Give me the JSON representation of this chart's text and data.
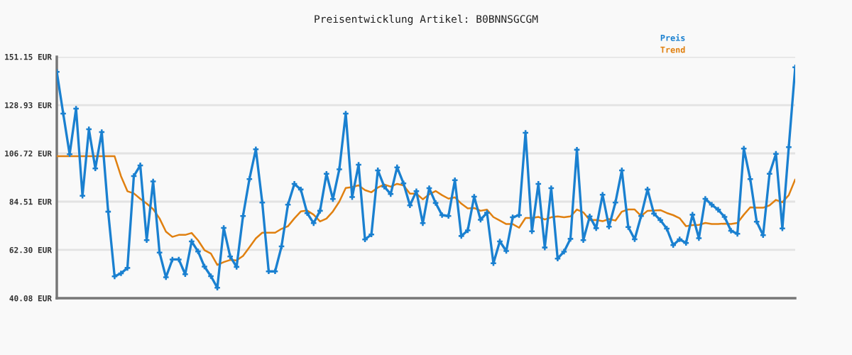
{
  "chart_data": {
    "type": "line",
    "title": "Preisentwicklung Artikel: B0BNNSGCGM",
    "categories": [
      null,
      null,
      null,
      null,
      null,
      null,
      null,
      null,
      null,
      null,
      null,
      null,
      null,
      null,
      null,
      null,
      null,
      null,
      null,
      null,
      null,
      null,
      null,
      null,
      null,
      null,
      null,
      null,
      null,
      null,
      null,
      null,
      null,
      null,
      null,
      null,
      null,
      null,
      null,
      null,
      null,
      null,
      null,
      null,
      null,
      null,
      null,
      null,
      null,
      null,
      null,
      null,
      null,
      null,
      null,
      null,
      null,
      null,
      null,
      null,
      null,
      null,
      null,
      null,
      null,
      null,
      null,
      null,
      null,
      null,
      null,
      null,
      null,
      null,
      null,
      null,
      null,
      null,
      null,
      null,
      null,
      null,
      null,
      null,
      null,
      null,
      null,
      null,
      null,
      null,
      null,
      null,
      null,
      null,
      null,
      null,
      null,
      null,
      null,
      null,
      null,
      null,
      null,
      null,
      null,
      null,
      null,
      null,
      null,
      null,
      null,
      null,
      null,
      null,
      null,
      null
    ],
    "series": [
      {
        "name": "Preis",
        "color": "#1a80d0",
        "marker": "cross",
        "values": [
          144.2,
          125.0,
          106.3,
          127.3,
          87.2,
          117.8,
          99.8,
          116.5,
          79.9,
          50.1,
          51.5,
          54.0,
          96.3,
          101.2,
          66.8,
          93.8,
          61.1,
          49.7,
          57.9,
          57.9,
          51.1,
          66.2,
          61.6,
          54.6,
          50.2,
          44.9,
          72.4,
          59.3,
          54.5,
          77.9,
          94.9,
          108.6,
          84.1,
          52.4,
          52.4,
          63.9,
          83.1,
          92.7,
          90.1,
          79.2,
          74.6,
          80.3,
          97.3,
          85.7,
          99.4,
          125.0,
          86.6,
          101.5,
          67.1,
          69.4,
          98.9,
          91.4,
          88.0,
          100.3,
          92.9,
          82.8,
          89.3,
          74.6,
          90.7,
          83.9,
          78.3,
          77.9,
          94.4,
          68.7,
          71.3,
          86.8,
          76.2,
          79.4,
          56.2,
          66.2,
          61.8,
          77.3,
          78.3,
          116.2,
          70.9,
          92.7,
          63.4,
          90.7,
          58.3,
          61.5,
          67.4,
          108.4,
          66.8,
          77.7,
          72.3,
          87.7,
          73.0,
          84.1,
          98.9,
          72.8,
          67.2,
          77.9,
          90.1,
          79.0,
          76.0,
          72.1,
          64.5,
          67.2,
          65.5,
          78.5,
          67.7,
          85.8,
          83.1,
          80.8,
          77.5,
          71.1,
          69.7,
          108.9,
          94.9,
          75.3,
          69.1,
          97.3,
          106.5,
          72.2,
          109.6,
          146.3
        ]
      },
      {
        "name": "Trend",
        "color": "#e08010",
        "values": [
          105.4,
          105.4,
          105.4,
          105.4,
          105.4,
          105.4,
          105.4,
          105.4,
          105.4,
          105.4,
          96.2,
          89.3,
          88.3,
          85.8,
          83.6,
          81.1,
          76.8,
          70.7,
          68.3,
          69.2,
          69.2,
          70.1,
          66.7,
          62.2,
          60.6,
          55.4,
          56.7,
          57.7,
          57.5,
          59.5,
          63.5,
          67.6,
          70.2,
          70.2,
          70.2,
          72.0,
          73.2,
          76.8,
          80.0,
          80.4,
          78.5,
          75.4,
          76.7,
          80.0,
          84.5,
          90.8,
          91.2,
          92.0,
          89.8,
          88.8,
          91.0,
          92.4,
          91.4,
          92.7,
          92.0,
          88.2,
          88.2,
          85.6,
          87.9,
          89.4,
          87.5,
          85.9,
          86.5,
          83.6,
          81.4,
          81.6,
          80.3,
          80.8,
          77.4,
          75.8,
          74.2,
          74.2,
          72.5,
          77.0,
          77.0,
          77.5,
          76.3,
          77.3,
          77.7,
          77.3,
          77.7,
          80.9,
          79.6,
          76.0,
          76.1,
          75.5,
          76.5,
          75.8,
          79.9,
          80.9,
          80.9,
          77.9,
          80.3,
          80.4,
          80.6,
          79.3,
          78.3,
          76.9,
          73.2,
          73.7,
          73.8,
          74.7,
          74.2,
          74.2,
          74.4,
          74.2,
          74.7,
          78.5,
          81.9,
          81.7,
          81.7,
          82.8,
          85.3,
          84.2,
          87.5,
          94.7
        ]
      }
    ],
    "ylim": [
      40.08,
      151.15
    ],
    "yticks": [
      {
        "value": 40.08,
        "label": "40.08 EUR"
      },
      {
        "value": 62.3,
        "label": "62.30 EUR"
      },
      {
        "value": 84.51,
        "label": "84.51 EUR"
      },
      {
        "value": 106.72,
        "label": "106.72 EUR"
      },
      {
        "value": 128.93,
        "label": "128.93 EUR"
      },
      {
        "value": 151.15,
        "label": "151.15 EUR"
      }
    ],
    "grid": "y",
    "legend": "top right"
  }
}
